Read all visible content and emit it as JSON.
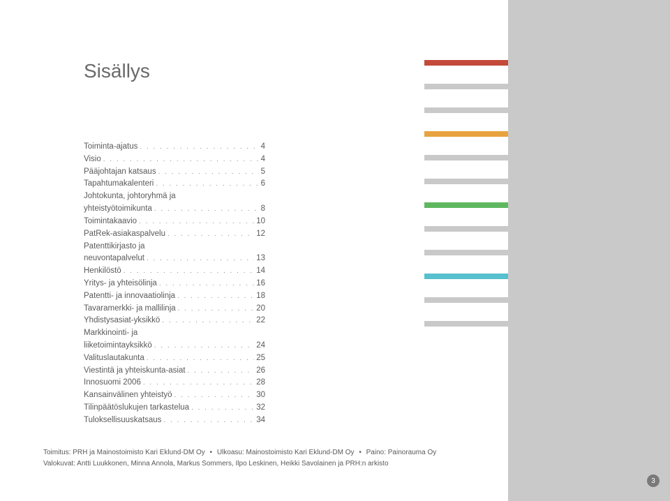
{
  "title": "Sisällys",
  "toc": [
    {
      "label": "Toiminta-ajatus",
      "page": "4"
    },
    {
      "label": "Visio",
      "page": "4"
    },
    {
      "label": "Pääjohtajan katsaus",
      "page": "5"
    },
    {
      "label": "Tapahtumakalenteri",
      "page": "6"
    },
    {
      "prefix": "Johtokunta, johtoryhmä ja",
      "label": "yhteistyötoimikunta",
      "page": "8"
    },
    {
      "label": "Toimintakaavio",
      "page": "10"
    },
    {
      "label": "PatRek-asiakaspalvelu",
      "page": "12"
    },
    {
      "prefix": "Patenttikirjasto ja",
      "label": "neuvontapalvelut",
      "page": "13"
    },
    {
      "label": "Henkilöstö",
      "page": "14"
    },
    {
      "label": "Yritys- ja yhteisölinja",
      "page": "16"
    },
    {
      "label": "Patentti- ja innovaatiolinja",
      "page": "18"
    },
    {
      "label": "Tavaramerkki- ja mallilinja",
      "page": "20"
    },
    {
      "label": "Yhdistysasiat-yksikkö",
      "page": "22"
    },
    {
      "prefix": "Markkinointi- ja",
      "label": "liiketoimintayksikkö",
      "page": "24"
    },
    {
      "label": "Valituslautakunta",
      "page": "25"
    },
    {
      "label": "Viestintä ja yhteiskunta-asiat",
      "page": "26"
    },
    {
      "label": "Innosuomi 2006",
      "page": "28"
    },
    {
      "label": "Kansainvälinen yhteistyö",
      "page": "30"
    },
    {
      "label": "Tilinpäätöslukujen tarkastelua",
      "page": "32"
    },
    {
      "label": "Tuloksellisuuskatsaus",
      "page": "34"
    }
  ],
  "bars": [
    {
      "color": "#c44a3a"
    },
    {
      "color": "#c9c9c9"
    },
    {
      "color": "#c9c9c9"
    },
    {
      "color": "#e8a23f"
    },
    {
      "color": "#c9c9c9"
    },
    {
      "color": "#c9c9c9"
    },
    {
      "color": "#5fb85f"
    },
    {
      "color": "#c9c9c9"
    },
    {
      "color": "#c9c9c9"
    },
    {
      "color": "#57c0ce"
    },
    {
      "color": "#c9c9c9"
    },
    {
      "color": "#c9c9c9"
    }
  ],
  "sidebar_color": "#c9c9c9",
  "credits": {
    "line1_parts": [
      "Toimitus: PRH ja Mainostoimisto Kari Eklund-DM Oy",
      "Ulkoasu: Mainostoimisto Kari Eklund-DM Oy",
      "Paino: Painorauma Oy"
    ],
    "line2": "Valokuvat: Antti Luukkonen, Minna Annola, Markus Sommers, Ilpo Leskinen, Heikki Savolainen ja PRH:n arkisto"
  },
  "page_number": "3",
  "dots_fill": ". . . . . . . . . . . . . . . . . . . . . . . . . . . . . . . . . . . . . . . . . ."
}
